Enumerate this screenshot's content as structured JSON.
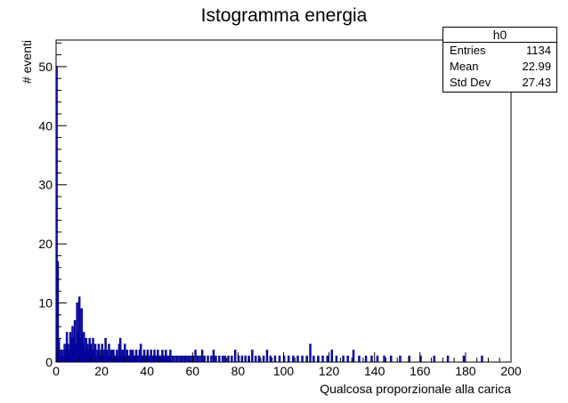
{
  "title": "Istogramma energia",
  "colors": {
    "histogram": "#000099",
    "axis": "#000000",
    "background": "#ffffff"
  },
  "stats_box": {
    "name": "h0",
    "rows": [
      {
        "label": "Entries",
        "value": "1134"
      },
      {
        "label": "Mean",
        "value": "22.99"
      },
      {
        "label": "Std Dev",
        "value": "27.43"
      }
    ]
  },
  "chart_data": {
    "type": "histogram",
    "title": "Istogramma energia",
    "xlabel": "Qualcosa proporzionale alla carica",
    "ylabel": "# eventi",
    "xlim": [
      0,
      200
    ],
    "ylim": [
      0,
      54.5
    ],
    "x_ticks": [
      0,
      20,
      40,
      60,
      80,
      100,
      120,
      140,
      160,
      180,
      200
    ],
    "y_ticks": [
      0,
      10,
      20,
      30,
      40,
      50
    ],
    "bin_width": 0.5,
    "bins": [
      [
        0.0,
        50
      ],
      [
        0.5,
        17
      ],
      [
        1.0,
        4
      ],
      [
        1.5,
        2
      ],
      [
        2.0,
        1
      ],
      [
        2.5,
        2
      ],
      [
        3.0,
        1
      ],
      [
        3.5,
        3
      ],
      [
        4.0,
        2
      ],
      [
        4.5,
        5
      ],
      [
        5.0,
        3
      ],
      [
        5.5,
        2
      ],
      [
        6.0,
        5
      ],
      [
        6.5,
        4
      ],
      [
        7.0,
        6
      ],
      [
        7.5,
        4
      ],
      [
        8.0,
        7
      ],
      [
        8.5,
        3
      ],
      [
        9.0,
        10
      ],
      [
        9.5,
        5
      ],
      [
        10.0,
        11
      ],
      [
        10.5,
        4
      ],
      [
        11.0,
        9
      ],
      [
        11.5,
        3
      ],
      [
        12.0,
        5
      ],
      [
        12.5,
        2
      ],
      [
        13.0,
        4
      ],
      [
        13.5,
        3
      ],
      [
        14.0,
        2
      ],
      [
        14.5,
        4
      ],
      [
        15.0,
        3
      ],
      [
        15.5,
        2
      ],
      [
        16.0,
        4
      ],
      [
        16.5,
        2
      ],
      [
        17.0,
        3
      ],
      [
        17.5,
        1
      ],
      [
        18.0,
        2
      ],
      [
        18.5,
        3
      ],
      [
        19.0,
        1
      ],
      [
        19.5,
        2
      ],
      [
        20.0,
        3
      ],
      [
        20.5,
        1
      ],
      [
        21.0,
        2
      ],
      [
        21.5,
        4
      ],
      [
        22.0,
        2
      ],
      [
        22.5,
        1
      ],
      [
        23.0,
        3
      ],
      [
        23.5,
        2
      ],
      [
        24.0,
        1
      ],
      [
        24.5,
        2
      ],
      [
        25.0,
        2
      ],
      [
        25.5,
        1
      ],
      [
        26.0,
        1
      ],
      [
        26.5,
        2
      ],
      [
        27.0,
        1
      ],
      [
        27.5,
        3
      ],
      [
        28.0,
        4
      ],
      [
        28.5,
        1
      ],
      [
        29.0,
        2
      ],
      [
        29.5,
        1
      ],
      [
        30.0,
        3
      ],
      [
        30.5,
        1
      ],
      [
        31.0,
        2
      ],
      [
        31.5,
        1
      ],
      [
        32.0,
        1
      ],
      [
        32.5,
        2
      ],
      [
        33.0,
        1
      ],
      [
        33.5,
        2
      ],
      [
        34.0,
        1
      ],
      [
        34.5,
        1
      ],
      [
        35.0,
        2
      ],
      [
        35.5,
        1
      ],
      [
        36.0,
        1
      ],
      [
        36.5,
        2
      ],
      [
        37.0,
        3
      ],
      [
        37.5,
        1
      ],
      [
        38.0,
        1
      ],
      [
        38.5,
        2
      ],
      [
        39.0,
        1
      ],
      [
        39.5,
        1
      ],
      [
        40.0,
        2
      ],
      [
        40.5,
        1
      ],
      [
        41.0,
        1
      ],
      [
        41.5,
        2
      ],
      [
        42.0,
        1
      ],
      [
        42.5,
        1
      ],
      [
        43.0,
        2
      ],
      [
        43.5,
        1
      ],
      [
        44.0,
        1
      ],
      [
        44.5,
        2
      ],
      [
        45.0,
        1
      ],
      [
        45.5,
        1
      ],
      [
        46.0,
        1
      ],
      [
        46.5,
        2
      ],
      [
        47.0,
        1
      ],
      [
        47.5,
        1
      ],
      [
        48.0,
        2
      ],
      [
        48.5,
        1
      ],
      [
        49.0,
        1
      ],
      [
        49.5,
        1
      ],
      [
        50.0,
        2
      ],
      [
        51.0,
        1
      ],
      [
        52.0,
        1
      ],
      [
        53.0,
        1
      ],
      [
        54.0,
        1
      ],
      [
        55.0,
        1
      ],
      [
        56.0,
        1
      ],
      [
        57.0,
        1
      ],
      [
        58.0,
        1
      ],
      [
        59.0,
        1
      ],
      [
        60.0,
        1
      ],
      [
        61.0,
        2
      ],
      [
        62.0,
        1
      ],
      [
        63.0,
        1
      ],
      [
        64.0,
        2
      ],
      [
        65.0,
        1
      ],
      [
        66.5,
        1
      ],
      [
        68.0,
        1
      ],
      [
        69.0,
        2
      ],
      [
        70.0,
        1
      ],
      [
        71.5,
        1
      ],
      [
        73.0,
        1
      ],
      [
        74.0,
        1
      ],
      [
        75.5,
        1
      ],
      [
        77.0,
        1
      ],
      [
        78.5,
        2
      ],
      [
        80.0,
        1
      ],
      [
        81.5,
        1
      ],
      [
        83.0,
        1
      ],
      [
        84.5,
        1
      ],
      [
        86.0,
        2
      ],
      [
        87.5,
        1
      ],
      [
        89.0,
        1
      ],
      [
        91.0,
        1
      ],
      [
        92.5,
        2
      ],
      [
        94.0,
        1
      ],
      [
        96.0,
        1
      ],
      [
        98.0,
        1
      ],
      [
        100.0,
        1
      ],
      [
        102.0,
        1
      ],
      [
        104.0,
        1
      ],
      [
        106.0,
        1
      ],
      [
        108.0,
        1
      ],
      [
        110.0,
        1
      ],
      [
        111.5,
        3
      ],
      [
        113.0,
        1
      ],
      [
        115.0,
        1
      ],
      [
        117.0,
        1
      ],
      [
        119.0,
        1
      ],
      [
        121.0,
        2
      ],
      [
        123.0,
        1
      ],
      [
        126.0,
        1
      ],
      [
        128.0,
        1
      ],
      [
        130.5,
        2
      ],
      [
        133.0,
        1
      ],
      [
        136.0,
        1
      ],
      [
        138.5,
        1
      ],
      [
        141.0,
        1
      ],
      [
        144.0,
        1
      ],
      [
        147.0,
        1
      ],
      [
        151.0,
        1
      ],
      [
        155.0,
        1
      ],
      [
        160.0,
        1
      ],
      [
        166.0,
        1
      ],
      [
        172.0,
        1
      ],
      [
        179.0,
        1
      ],
      [
        187.0,
        1
      ]
    ]
  }
}
